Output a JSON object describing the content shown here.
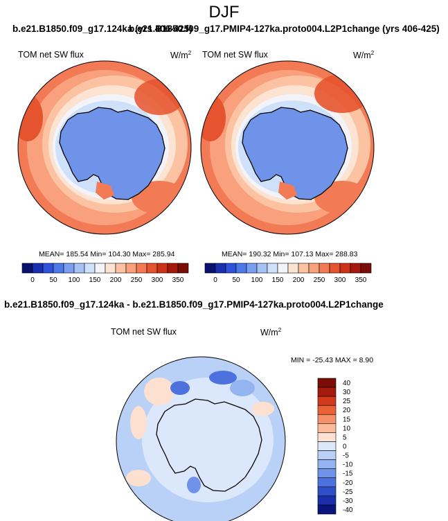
{
  "figure": {
    "season": "DJF",
    "title_left": "b.e21.B1850.f09_g17.124ka (yrs 406-425)",
    "title_right": "b.e21.B1850.f09_g17.PMIP4-127ka.proto004.L2P1change (yrs 406-425)",
    "diff_title": "b.e21.B1850.f09_g17.124ka - b.e21.B1850.f09_g17.PMIP4-127ka.proto004.L2P1change"
  },
  "chart_data": [
    {
      "type": "heatmap",
      "projection": "south-polar-stereographic",
      "title": "TOM net SW flux",
      "units": "W/m",
      "units_superscript": "2",
      "stats": {
        "mean": "185.54",
        "min": "104.30",
        "max": "285.94"
      },
      "stats_text": "MEAN= 185.54  Min= 104.30  Max= 285.94",
      "colorbar_ticks": [
        "0",
        "50",
        "100",
        "150",
        "200",
        "250",
        "300",
        "350"
      ],
      "levels": [
        0,
        25,
        50,
        75,
        100,
        125,
        150,
        175,
        200,
        225,
        250,
        275,
        300,
        325,
        350
      ],
      "orientation": "horizontal"
    },
    {
      "type": "heatmap",
      "projection": "south-polar-stereographic",
      "title": "TOM net SW flux",
      "units": "W/m",
      "units_superscript": "2",
      "stats": {
        "mean": "190.32",
        "min": "107.13",
        "max": "288.83"
      },
      "stats_text": "MEAN= 190.32  Min= 107.13  Max= 288.83",
      "colorbar_ticks": [
        "0",
        "50",
        "100",
        "150",
        "200",
        "250",
        "300",
        "350"
      ],
      "levels": [
        0,
        25,
        50,
        75,
        100,
        125,
        150,
        175,
        200,
        225,
        250,
        275,
        300,
        325,
        350
      ],
      "orientation": "horizontal"
    },
    {
      "type": "heatmap",
      "projection": "south-polar-stereographic",
      "title": "TOM net SW flux",
      "units": "W/m",
      "units_superscript": "2",
      "stats": {
        "min": "-25.43",
        "max": "8.90"
      },
      "stats_text": "MIN = -25.43 MAX =   8.90",
      "colorbar_ticks": [
        "40",
        "30",
        "25",
        "20",
        "15",
        "10",
        "5",
        "0",
        "-5",
        "-10",
        "-15",
        "-20",
        "-25",
        "-30",
        "-40"
      ],
      "orientation": "vertical"
    }
  ],
  "colors": {
    "diverging": [
      "#08126e",
      "#1a2fb0",
      "#2e52d9",
      "#4d7ae8",
      "#7a9ff0",
      "#a6c2f5",
      "#cfe0fb",
      "#f2f4fa",
      "#fde3d2",
      "#fcc3a3",
      "#f9a07c",
      "#f27a55",
      "#e5542f",
      "#cc3218",
      "#a51a0c",
      "#7a0d05"
    ],
    "diff": [
      "#7a0d05",
      "#a51a0c",
      "#d33a1c",
      "#ec6238",
      "#f5906a",
      "#f9bb98",
      "#fde0cf",
      "#dbe8fb",
      "#b9d1f6",
      "#93b4f0",
      "#6f93e8",
      "#4d72de",
      "#2f4fc9",
      "#1b30a8",
      "#0b147a"
    ],
    "continent_abs": "#6f93e8",
    "continent_diff": "#dbe8fb",
    "coast": "#000000"
  }
}
